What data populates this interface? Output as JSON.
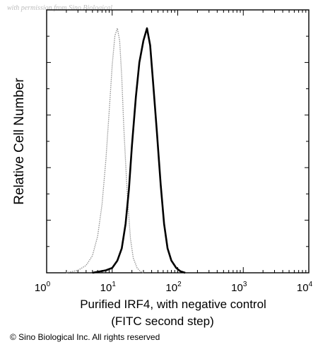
{
  "watermark": "with permission from Sino Biological",
  "copyright": "© Sino Biological Inc. All rights reserved",
  "colors": {
    "sample": "#000000",
    "control": "#8a8a8a",
    "axis": "#000000",
    "background": "#ffffff"
  },
  "chart_data": {
    "type": "line",
    "ylabel": "Relative Cell Number",
    "xlabel_line1": "Purified IRF4, with negative control",
    "xlabel_line2": "(FITC second step)",
    "x_scale": "log",
    "xlim": [
      1,
      10000
    ],
    "ylim": [
      0,
      1
    ],
    "x_ticks": [
      {
        "base": "10",
        "exp": "0",
        "value": 1
      },
      {
        "base": "10",
        "exp": "1",
        "value": 10
      },
      {
        "base": "10",
        "exp": "2",
        "value": 100
      },
      {
        "base": "10",
        "exp": "3",
        "value": 1000
      },
      {
        "base": "10",
        "exp": "4",
        "value": 10000
      }
    ],
    "series": [
      {
        "role": "negative control",
        "style": "dotted gray",
        "x": [
          2,
          3,
          4,
          5,
          6,
          7,
          8,
          9,
          10,
          11,
          12,
          13,
          14,
          15,
          17,
          19,
          21,
          24,
          27,
          30
        ],
        "y": [
          0.0,
          0.01,
          0.03,
          0.07,
          0.15,
          0.28,
          0.46,
          0.66,
          0.85,
          0.97,
          1.0,
          0.95,
          0.8,
          0.6,
          0.32,
          0.14,
          0.06,
          0.02,
          0.005,
          0.0
        ]
      },
      {
        "role": "sample (IRF4)",
        "style": "solid black",
        "x": [
          5,
          8,
          10,
          12,
          14,
          16,
          18,
          20,
          23,
          26,
          30,
          34,
          38,
          42,
          48,
          55,
          62,
          70,
          80,
          95,
          110,
          130
        ],
        "y": [
          0.0,
          0.01,
          0.02,
          0.05,
          0.1,
          0.2,
          0.34,
          0.52,
          0.72,
          0.86,
          0.95,
          1.0,
          0.93,
          0.78,
          0.58,
          0.36,
          0.2,
          0.1,
          0.05,
          0.02,
          0.006,
          0.0
        ]
      }
    ]
  }
}
